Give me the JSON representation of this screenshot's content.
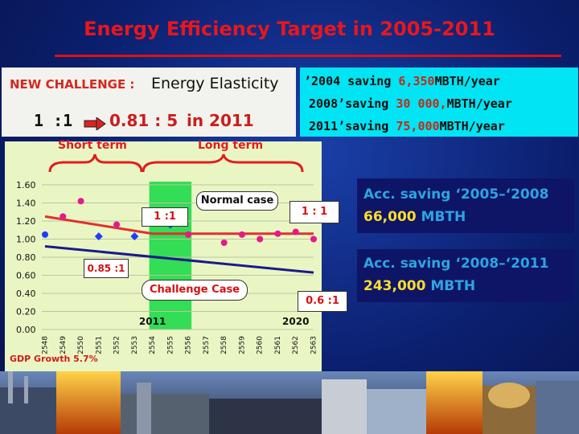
{
  "slide": {
    "title": "Energy Efficiency Target in 2005-2011"
  },
  "challenge": {
    "label": "NEW CHALLENGE :",
    "topic": "Energy Elasticity",
    "ratio_start": "1 :1",
    "ratio_target": "0.81 : 5",
    "ratio_year": "in 2011"
  },
  "savings": [
    {
      "prefix": "’2004 saving ",
      "value": "6,350",
      "unit": "MBTH/year"
    },
    {
      "prefix": "2008’saving ",
      "value": "30 000,",
      "unit": "MBTH/year"
    },
    {
      "prefix": "2011’saving ",
      "value": "75,000",
      "unit": "MBTH/year"
    }
  ],
  "terms": {
    "short": "Short term",
    "long": "Long term"
  },
  "callouts": {
    "normal_case": "Normal case",
    "ratio_1": "1 :1",
    "ratio_2": "1 : 1",
    "ratio_085": "0.85 :1",
    "challenge_case": "Challenge Case",
    "ratio_06": "0.6 :1"
  },
  "accumulated": [
    {
      "heading": "Acc. saving ‘2005–‘2008",
      "value": "66,000",
      "unit": "MBTH"
    },
    {
      "heading": "Acc. saving ‘2008–‘2011",
      "value": "243,000",
      "unit": "MBTH"
    }
  ],
  "chart_data": {
    "type": "scatter",
    "categories": [
      "2548",
      "2549",
      "2550",
      "2551",
      "2552",
      "2553",
      "2554",
      "2555",
      "2556",
      "2557",
      "2558",
      "2559",
      "2560",
      "2561",
      "2562",
      "2563"
    ],
    "ylim": [
      0,
      1.6
    ],
    "yticks": [
      "0.00",
      "0.20",
      "0.40",
      "0.60",
      "0.80",
      "1.00",
      "1.20",
      "1.40",
      "1.60"
    ],
    "points": [
      {
        "x": "2548",
        "y": 1.05,
        "marker": "circle",
        "color": "#1e3cff"
      },
      {
        "x": "2549",
        "y": 1.25,
        "marker": "circle",
        "color": "#e5198a"
      },
      {
        "x": "2550",
        "y": 1.42,
        "marker": "circle",
        "color": "#e5198a"
      },
      {
        "x": "2551",
        "y": 1.03,
        "marker": "diamond",
        "color": "#1e3cff"
      },
      {
        "x": "2552",
        "y": 1.16,
        "marker": "circle",
        "color": "#e5198a"
      },
      {
        "x": "2553",
        "y": 1.03,
        "marker": "diamond",
        "color": "#1e3cff"
      },
      {
        "x": "2554",
        "y": 1.25,
        "marker": "circle",
        "color": "#e5198a"
      },
      {
        "x": "2555",
        "y": 1.16,
        "marker": "diamond",
        "color": "#1e3cff"
      },
      {
        "x": "2556",
        "y": 1.05,
        "marker": "circle",
        "color": "#e5198a"
      },
      {
        "x": "2557",
        "y": 1.42,
        "marker": "circle",
        "color": "#e5198a"
      },
      {
        "x": "2558",
        "y": 0.96,
        "marker": "circle",
        "color": "#e5198a"
      },
      {
        "x": "2559",
        "y": 1.05,
        "marker": "circle",
        "color": "#e5198a"
      },
      {
        "x": "2560",
        "y": 1.0,
        "marker": "circle",
        "color": "#e5198a"
      },
      {
        "x": "2561",
        "y": 1.06,
        "marker": "circle",
        "color": "#e5198a"
      },
      {
        "x": "2562",
        "y": 1.08,
        "marker": "circle",
        "color": "#e5198a"
      },
      {
        "x": "2563",
        "y": 1.0,
        "marker": "circle",
        "color": "#e5198a"
      }
    ],
    "trend_lines": [
      {
        "x": [
          "2548",
          "2554"
        ],
        "y": [
          1.25,
          1.06
        ],
        "color": "#e03030"
      },
      {
        "x": [
          "2554",
          "2563"
        ],
        "y": [
          1.06,
          1.06
        ],
        "color": "#e03030"
      },
      {
        "x": [
          "2548",
          "2563"
        ],
        "y": [
          0.92,
          0.63
        ],
        "color": "#1a1a8a"
      }
    ],
    "highlight_band": {
      "x": [
        "2554",
        "2556"
      ],
      "color": "#33dd55"
    },
    "markers": [
      {
        "x": "2554",
        "label": "2011"
      },
      {
        "x": "2562",
        "label": "2020"
      }
    ],
    "footnote": "GDP Growth 5.7%"
  },
  "colors": {
    "title": "#e8161c",
    "saving_box": "#00e4f4",
    "chart_bg": "#e9f6c4",
    "accent_blue": "#2da5e0",
    "accent_yellow": "#ffde2b"
  }
}
